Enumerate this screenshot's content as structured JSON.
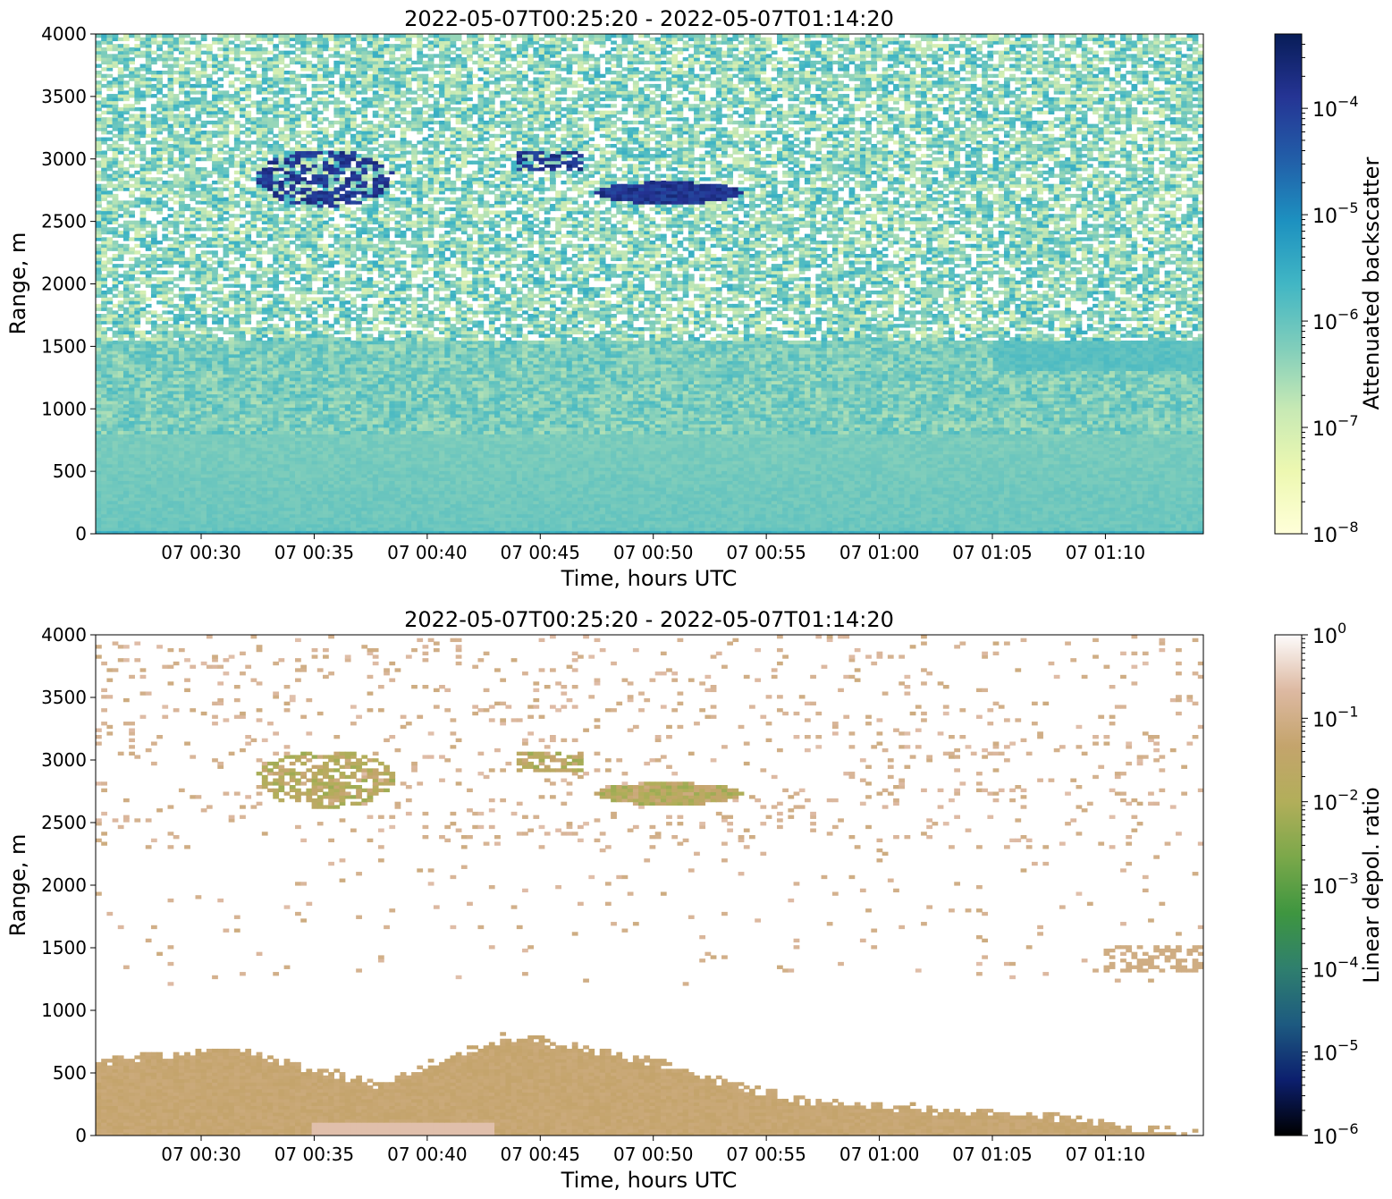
{
  "chart_data": [
    {
      "type": "heatmap",
      "title": "2022-05-07T00:25:20 - 2022-05-07T01:14:20",
      "xlabel": "Time, hours UTC",
      "ylabel": "Range, m",
      "xlim": [
        "2022-05-07T00:25:20",
        "2022-05-07T01:14:20"
      ],
      "x_ticks": [
        "07 00:30",
        "07 00:35",
        "07 00:40",
        "07 00:45",
        "07 00:50",
        "07 00:55",
        "07 01:00",
        "07 01:05",
        "07 01:10"
      ],
      "x_tick_times_min": [
        30,
        35,
        40,
        45,
        50,
        55,
        60,
        65,
        70
      ],
      "ylim": [
        0,
        4000
      ],
      "y_ticks": [
        0,
        500,
        1000,
        1500,
        2000,
        2500,
        3000,
        3500,
        4000
      ],
      "colorbar": {
        "label": "Attenuated backscatter",
        "scale": "log",
        "range": [
          1e-08,
          0.0005
        ],
        "ticks": [
          {
            "base": "10",
            "exp": "−8",
            "value": 1e-08
          },
          {
            "base": "10",
            "exp": "−7",
            "value": 1e-07
          },
          {
            "base": "10",
            "exp": "−6",
            "value": 1e-06
          },
          {
            "base": "10",
            "exp": "−5",
            "value": 1e-05
          },
          {
            "base": "10",
            "exp": "−4",
            "value": 0.0001
          }
        ],
        "colormap": "YlGnBu",
        "stops": [
          "#ffffd9",
          "#edf8b1",
          "#c7e9b4",
          "#7fcdbb",
          "#41b6c4",
          "#1d91c0",
          "#225ea8",
          "#253494",
          "#081d58"
        ]
      },
      "features": [
        {
          "kind": "background",
          "description": "near surface",
          "range_m": [
            0,
            800
          ],
          "value": 1e-06
        },
        {
          "kind": "layer",
          "range_m": [
            1300,
            1550
          ],
          "value": 1e-06
        },
        {
          "kind": "noise",
          "range_m": [
            1500,
            4000
          ],
          "value_range": [
            1e-07,
            3e-06
          ]
        },
        {
          "kind": "cloud",
          "time_min": [
            32.5,
            38.5
          ],
          "range_m": [
            2600,
            3080
          ],
          "value": 0.0003
        },
        {
          "kind": "cloud",
          "time_min": [
            43.0,
            55.0
          ],
          "range_m": [
            2650,
            3070
          ],
          "value": 0.0003
        }
      ]
    },
    {
      "type": "heatmap",
      "title": "2022-05-07T00:25:20 - 2022-05-07T01:14:20",
      "xlabel": "Time, hours UTC",
      "ylabel": "Range, m",
      "xlim": [
        "2022-05-07T00:25:20",
        "2022-05-07T01:14:20"
      ],
      "x_ticks": [
        "07 00:30",
        "07 00:35",
        "07 00:40",
        "07 00:45",
        "07 00:50",
        "07 00:55",
        "07 01:00",
        "07 01:05",
        "07 01:10"
      ],
      "x_tick_times_min": [
        30,
        35,
        40,
        45,
        50,
        55,
        60,
        65,
        70
      ],
      "ylim": [
        0,
        4000
      ],
      "y_ticks": [
        0,
        500,
        1000,
        1500,
        2000,
        2500,
        3000,
        3500,
        4000
      ],
      "colorbar": {
        "label": "Linear depol. ratio",
        "scale": "log",
        "range": [
          1e-06,
          1
        ],
        "ticks": [
          {
            "base": "10",
            "exp": "−6",
            "value": 1e-06
          },
          {
            "base": "10",
            "exp": "−5",
            "value": 1e-05
          },
          {
            "base": "10",
            "exp": "−4",
            "value": 0.0001
          },
          {
            "base": "10",
            "exp": "−3",
            "value": 0.001
          },
          {
            "base": "10",
            "exp": "−2",
            "value": 0.01
          },
          {
            "base": "10",
            "exp": "−1",
            "value": 0.1
          },
          {
            "base": "10",
            "exp": "0",
            "value": 1
          }
        ],
        "colormap": "gist_earth",
        "stops": [
          "#000000",
          "#0c1f6e",
          "#1d5a80",
          "#2f7f6e",
          "#3e9640",
          "#7ba84a",
          "#b2ae5a",
          "#c4a46c",
          "#ddb9a2",
          "#fdfbfb"
        ]
      },
      "features": [
        {
          "kind": "aerosol_layer",
          "description": "boundary layer top",
          "time_min": [
            25.33,
            74.33
          ],
          "top_range_m": [
            600,
            700,
            400,
            800,
            600,
            300,
            200,
            150,
            0
          ],
          "value": 0.06
        },
        {
          "kind": "cloud",
          "time_min": [
            32.5,
            38.5
          ],
          "range_m": [
            2600,
            3080
          ],
          "value": 0.03
        },
        {
          "kind": "cloud",
          "time_min": [
            43.0,
            55.0
          ],
          "range_m": [
            2650,
            3070
          ],
          "value": 0.05
        },
        {
          "kind": "sparse_noise",
          "range_m": [
            1200,
            4000
          ],
          "value": 0.15
        }
      ]
    }
  ]
}
